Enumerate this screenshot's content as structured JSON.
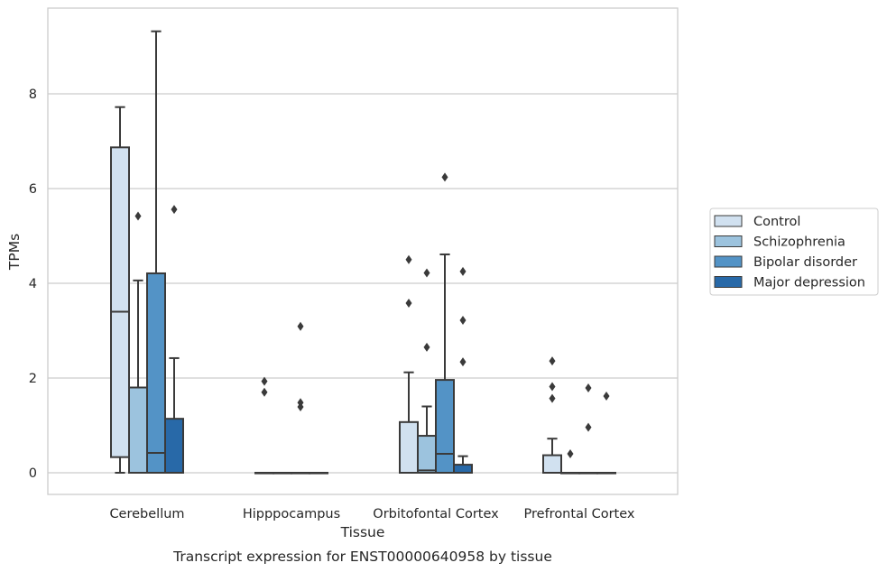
{
  "caption": "Transcript expression for ENST00000640958 by tissue",
  "chart_data": {
    "type": "box",
    "xlabel": "Tissue",
    "ylabel": "TPMs",
    "ylim": [
      -0.45,
      9.7
    ],
    "yticks": [
      0,
      2,
      4,
      6,
      8
    ],
    "grid": "horizontal",
    "legend_position": "right",
    "categories": [
      "Cerebellum",
      "Hipppocampus",
      "Orbitofontal Cortex",
      "Prefrontal Cortex"
    ],
    "series": [
      {
        "name": "Control",
        "color": "#d1e1f0",
        "boxes": [
          {
            "q1": 0.33,
            "median": 3.4,
            "q3": 6.87,
            "whisker_low": 0.0,
            "whisker_high": 7.72,
            "outliers": []
          },
          {
            "q1": 0,
            "median": 0,
            "q3": 0,
            "whisker_low": 0,
            "whisker_high": 0,
            "outliers": [
              1.93,
              1.7
            ]
          },
          {
            "q1": 0.0,
            "median": 0.0,
            "q3": 1.07,
            "whisker_low": 0.0,
            "whisker_high": 2.12,
            "outliers": [
              4.5,
              3.58
            ]
          },
          {
            "q1": 0.0,
            "median": 0.0,
            "q3": 0.37,
            "whisker_low": 0.0,
            "whisker_high": 0.72,
            "outliers": [
              2.36,
              1.82,
              1.57
            ]
          }
        ]
      },
      {
        "name": "Schizophrenia",
        "color": "#9cc3de",
        "boxes": [
          {
            "q1": 0.0,
            "median": 0.0,
            "q3": 1.8,
            "whisker_low": 0.0,
            "whisker_high": 4.06,
            "outliers": [
              5.42
            ]
          },
          {
            "q1": 0,
            "median": 0,
            "q3": 0,
            "whisker_low": 0,
            "whisker_high": 0,
            "outliers": []
          },
          {
            "q1": 0.0,
            "median": 0.05,
            "q3": 0.78,
            "whisker_low": 0.0,
            "whisker_high": 1.4,
            "outliers": [
              4.22,
              2.65
            ]
          },
          {
            "q1": 0,
            "median": 0,
            "q3": 0,
            "whisker_low": 0,
            "whisker_high": 0,
            "outliers": [
              0.4
            ]
          }
        ]
      },
      {
        "name": "Bipolar disorder",
        "color": "#5393c6",
        "boxes": [
          {
            "q1": 0.0,
            "median": 0.42,
            "q3": 4.21,
            "whisker_low": 0.0,
            "whisker_high": 9.32,
            "outliers": []
          },
          {
            "q1": 0,
            "median": 0,
            "q3": 0,
            "whisker_low": 0,
            "whisker_high": 0,
            "outliers": [
              3.09,
              1.48,
              1.39
            ]
          },
          {
            "q1": 0.0,
            "median": 0.4,
            "q3": 1.96,
            "whisker_low": 0.0,
            "whisker_high": 4.61,
            "outliers": [
              6.24
            ]
          },
          {
            "q1": 0,
            "median": 0,
            "q3": 0,
            "whisker_low": 0,
            "whisker_high": 0,
            "outliers": [
              1.79,
              0.96
            ]
          }
        ]
      },
      {
        "name": "Major depression",
        "color": "#2869a8",
        "boxes": [
          {
            "q1": 0.0,
            "median": 0.0,
            "q3": 1.14,
            "whisker_low": 0.0,
            "whisker_high": 2.42,
            "outliers": [
              5.56
            ]
          },
          {
            "q1": 0,
            "median": 0,
            "q3": 0,
            "whisker_low": 0,
            "whisker_high": 0,
            "outliers": []
          },
          {
            "q1": 0.0,
            "median": 0.0,
            "q3": 0.17,
            "whisker_low": 0.0,
            "whisker_high": 0.35,
            "outliers": [
              4.25,
              3.22,
              2.34
            ]
          },
          {
            "q1": 0,
            "median": 0,
            "q3": 0,
            "whisker_low": 0,
            "whisker_high": 0,
            "outliers": [
              1.62
            ]
          }
        ]
      }
    ]
  }
}
